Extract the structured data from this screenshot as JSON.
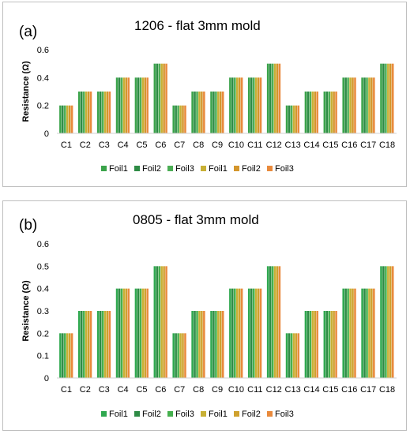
{
  "chart_data": [
    {
      "type": "bar",
      "panel_label": "(a)",
      "title": "1206 - flat 3mm mold",
      "ylabel": "Resistance (Ω)",
      "xlabel": "",
      "ylim": [
        0,
        0.6
      ],
      "yticks": [
        "0",
        "0.2",
        "0.4",
        "0.6"
      ],
      "grid": false,
      "legend_position": "bottom",
      "categories": [
        "C1",
        "C2",
        "C3",
        "C4",
        "C5",
        "C6",
        "C7",
        "C8",
        "C9",
        "C10",
        "C11",
        "C12",
        "C13",
        "C14",
        "C15",
        "C16",
        "C17",
        "C18"
      ],
      "series": [
        {
          "name": "Foil1",
          "color": "#3aa34a",
          "values": [
            0.2,
            0.3,
            0.3,
            0.4,
            0.4,
            0.5,
            0.2,
            0.3,
            0.3,
            0.4,
            0.4,
            0.5,
            0.2,
            0.3,
            0.3,
            0.4,
            0.4,
            0.5
          ]
        },
        {
          "name": "Foil2",
          "color": "#2e8b45",
          "values": [
            0.2,
            0.3,
            0.3,
            0.4,
            0.4,
            0.5,
            0.2,
            0.3,
            0.3,
            0.4,
            0.4,
            0.5,
            0.2,
            0.3,
            0.3,
            0.4,
            0.4,
            0.5
          ]
        },
        {
          "name": "Foil3",
          "color": "#4cae55",
          "values": [
            0.2,
            0.3,
            0.3,
            0.4,
            0.4,
            0.5,
            0.2,
            0.3,
            0.3,
            0.4,
            0.4,
            0.5,
            0.2,
            0.3,
            0.3,
            0.4,
            0.4,
            0.5
          ]
        },
        {
          "name": "Foil1",
          "color": "#c8b035",
          "values": [
            0.2,
            0.3,
            0.3,
            0.4,
            0.4,
            0.5,
            0.2,
            0.3,
            0.3,
            0.4,
            0.4,
            0.5,
            0.2,
            0.3,
            0.3,
            0.4,
            0.4,
            0.5
          ]
        },
        {
          "name": "Foil2",
          "color": "#d4962c",
          "values": [
            0.2,
            0.3,
            0.3,
            0.4,
            0.4,
            0.5,
            0.2,
            0.3,
            0.3,
            0.4,
            0.4,
            0.5,
            0.2,
            0.3,
            0.3,
            0.4,
            0.4,
            0.5
          ]
        },
        {
          "name": "Foil3",
          "color": "#e98a3c",
          "values": [
            0.2,
            0.3,
            0.3,
            0.4,
            0.4,
            0.5,
            0.2,
            0.3,
            0.3,
            0.4,
            0.4,
            0.5,
            0.2,
            0.3,
            0.3,
            0.4,
            0.4,
            0.5
          ]
        }
      ]
    },
    {
      "type": "bar",
      "panel_label": "(b)",
      "title": "0805 - flat 3mm mold",
      "ylabel": "Resistance (Ω)",
      "xlabel": "",
      "ylim": [
        0,
        0.6
      ],
      "yticks": [
        "0",
        "0.1",
        "0.2",
        "0.3",
        "0.4",
        "0.5",
        "0.6"
      ],
      "grid": false,
      "legend_position": "bottom",
      "categories": [
        "C1",
        "C2",
        "C3",
        "C4",
        "C5",
        "C6",
        "C7",
        "C8",
        "C9",
        "C10",
        "C11",
        "C12",
        "C13",
        "C14",
        "C15",
        "C16",
        "C17",
        "C18"
      ],
      "series": [
        {
          "name": "Foil1",
          "color": "#2fa84f",
          "values": [
            0.2,
            0.3,
            0.3,
            0.4,
            0.4,
            0.5,
            0.2,
            0.3,
            0.3,
            0.4,
            0.4,
            0.5,
            0.2,
            0.3,
            0.3,
            0.4,
            0.4,
            0.5
          ]
        },
        {
          "name": "Foil2",
          "color": "#2e8b45",
          "values": [
            0.2,
            0.3,
            0.3,
            0.4,
            0.4,
            0.5,
            0.2,
            0.3,
            0.3,
            0.4,
            0.4,
            0.5,
            0.2,
            0.3,
            0.3,
            0.4,
            0.4,
            0.5
          ]
        },
        {
          "name": "Foil3",
          "color": "#45b04e",
          "values": [
            0.2,
            0.3,
            0.3,
            0.4,
            0.4,
            0.5,
            0.2,
            0.3,
            0.3,
            0.4,
            0.4,
            0.5,
            0.2,
            0.3,
            0.3,
            0.4,
            0.4,
            0.5
          ]
        },
        {
          "name": "Foil1",
          "color": "#c8b035",
          "values": [
            0.2,
            0.3,
            0.3,
            0.4,
            0.4,
            0.5,
            0.2,
            0.3,
            0.3,
            0.4,
            0.4,
            0.5,
            0.2,
            0.3,
            0.3,
            0.4,
            0.4,
            0.5
          ]
        },
        {
          "name": "Foil2",
          "color": "#cfa12e",
          "values": [
            0.2,
            0.3,
            0.3,
            0.4,
            0.4,
            0.5,
            0.2,
            0.3,
            0.3,
            0.4,
            0.4,
            0.5,
            0.2,
            0.3,
            0.3,
            0.4,
            0.4,
            0.5
          ]
        },
        {
          "name": "Foil3",
          "color": "#e98a3c",
          "values": [
            0.2,
            0.3,
            0.3,
            0.4,
            0.4,
            0.5,
            0.2,
            0.3,
            0.3,
            0.4,
            0.4,
            0.5,
            0.2,
            0.3,
            0.3,
            0.4,
            0.4,
            0.5
          ]
        }
      ]
    }
  ]
}
